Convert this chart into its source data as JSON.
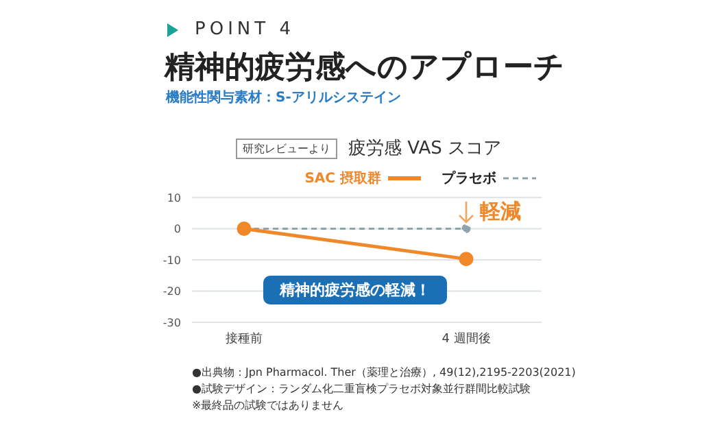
{
  "chart_data": {
    "type": "line",
    "title": "精神的疲労感へのアプローチ",
    "subtitle": "機能性関与素材：S-アリルシステイン",
    "annotations": [
      "POINT 4",
      "研究レビューより",
      "疲労感 VAS スコア",
      "軽減",
      "精神的疲労感の軽減！",
      "●出典物：Jpn Pharmacol. Ther（薬理と治療）, 49(12),2195-2203(2021)",
      "●試験デザイン：ランダム化二重盲検プラセボ対象並行群間比較試験",
      "※最終品の試験ではありません"
    ],
    "categories": [
      "接種前",
      "4 週間後"
    ],
    "series": [
      {
        "name": "SAC 摂取群",
        "color": "#f0882a",
        "values": [
          0,
          -9.7
        ],
        "line_style": "solid"
      },
      {
        "name": "プラセボ",
        "color": "#8fa3ae",
        "values": [
          0,
          0
        ],
        "line_style": "dashed"
      }
    ],
    "ylim": [
      -30,
      10
    ],
    "yticks": [
      10,
      0,
      -10,
      -20,
      -30
    ],
    "grid": "y",
    "legend": "top right",
    "marker": "circle"
  }
}
